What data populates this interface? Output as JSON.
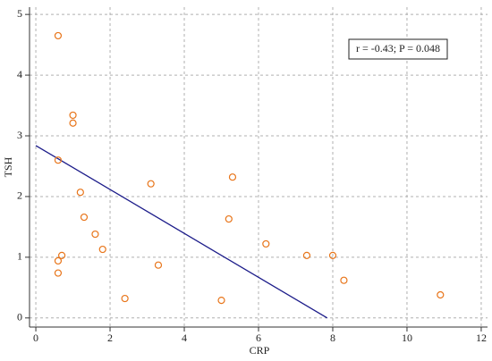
{
  "chart_data": {
    "type": "scatter",
    "x_label": "CRP",
    "y_label": "TSH",
    "annotation": "r = -0.43; P = 0.048",
    "xlim": [
      -0.17,
      12.17
    ],
    "ylim": [
      -0.15,
      5.12
    ],
    "xticks": [
      0,
      2,
      4,
      6,
      8,
      10,
      12
    ],
    "yticks": [
      0,
      1,
      2,
      3,
      4,
      5
    ],
    "grid": true,
    "points": {
      "color": "#e8751a",
      "x": [
        0.6,
        1.0,
        1.0,
        0.6,
        1.2,
        1.3,
        1.6,
        1.8,
        0.7,
        0.6,
        0.6,
        2.4,
        3.1,
        3.3,
        5.3,
        5.2,
        5.0,
        6.2,
        7.3,
        8.0,
        8.3,
        10.9
      ],
      "y": [
        4.65,
        3.34,
        3.21,
        2.6,
        2.07,
        1.66,
        1.38,
        1.13,
        1.03,
        0.94,
        0.74,
        0.32,
        2.21,
        0.87,
        2.32,
        1.63,
        0.29,
        1.22,
        1.03,
        1.03,
        0.62,
        0.38
      ]
    },
    "fit_line": {
      "color": "#1c1c8a",
      "x": [
        0,
        7.85
      ],
      "y": [
        2.84,
        0
      ]
    }
  }
}
